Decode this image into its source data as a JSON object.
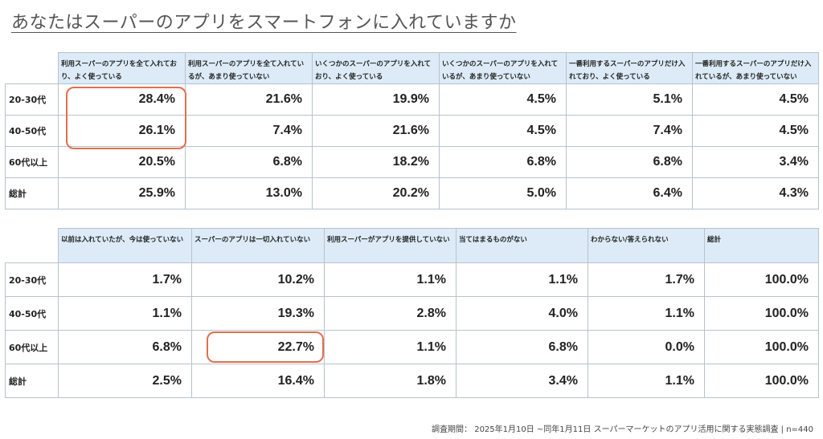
{
  "title": "あなたはスーパーのアプリをスマートフォンに入れていますか",
  "table1": {
    "headers": [
      "利用スーパーのアプリを全て入れており、よく使っている",
      "利用スーパーのアプリを全て入れているが、あまり使っていない",
      "いくつかのスーパーのアプリを入れており、よく使っている",
      "いくつかのスーパーのアプリを入れているが、あまり使っていない",
      "一番利用するスーパーのアプリだけ入れており、よく使っている",
      "一番利用するスーパーのアプリだけ入れているが、あまり使っていない"
    ],
    "rows": [
      {
        "label": "20-30代",
        "values": [
          "28.4%",
          "21.6%",
          "19.9%",
          "4.5%",
          "5.1%",
          "4.5%"
        ]
      },
      {
        "label": "40-50代",
        "values": [
          "26.1%",
          "7.4%",
          "21.6%",
          "4.5%",
          "7.4%",
          "4.5%"
        ]
      },
      {
        "label": "60代以上",
        "values": [
          "20.5%",
          "6.8%",
          "18.2%",
          "6.8%",
          "6.8%",
          "3.4%"
        ]
      },
      {
        "label": "総計",
        "values": [
          "25.9%",
          "13.0%",
          "20.2%",
          "5.0%",
          "6.4%",
          "4.3%"
        ]
      }
    ]
  },
  "table2": {
    "headers": [
      "以前は入れていたが、今は使っていない",
      "スーパーのアプリは一切入れていない",
      "利用スーパーがアプリを提供していない",
      "当てはまるものがない",
      "わからない/答えられない",
      "総計"
    ],
    "rows": [
      {
        "label": "20-30代",
        "values": [
          "1.7%",
          "10.2%",
          "1.1%",
          "1.1%",
          "1.7%",
          "100.0%"
        ]
      },
      {
        "label": "40-50代",
        "values": [
          "1.1%",
          "19.3%",
          "2.8%",
          "4.0%",
          "1.1%",
          "100.0%"
        ]
      },
      {
        "label": "60代以上",
        "values": [
          "6.8%",
          "22.7%",
          "1.1%",
          "6.8%",
          "0.0%",
          "100.0%"
        ]
      },
      {
        "label": "総計",
        "values": [
          "2.5%",
          "16.4%",
          "1.8%",
          "3.4%",
          "1.1%",
          "100.0%"
        ]
      }
    ]
  },
  "footer": "調査期間： 2025年1月10日 ~同年1月11日 スーパーマーケットのアプリ活用に関する実態調査 | n=440",
  "colors": {
    "header_bg": "#dcebf7",
    "highlight": "#e0704f",
    "border": "#b8c2cc"
  }
}
